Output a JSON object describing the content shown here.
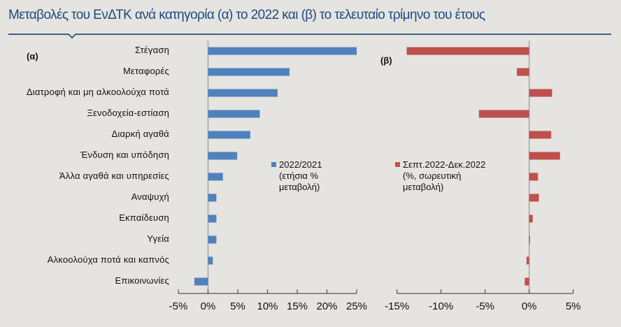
{
  "title": "Μεταβολές του ΕνΔΤΚ ανά κατηγορία (α) το 2022 και (β) το τελευταίο τρίμηνο του έτους",
  "colors": {
    "background": "#e5e4e0",
    "title": "#1f4a82",
    "rule": "#3e5f8a",
    "series_a": "#4f81bd",
    "series_b": "#c0504d",
    "axis": "#555555",
    "zero_line": "#a6a6a6"
  },
  "panels": {
    "a": {
      "label": "(α)"
    },
    "b": {
      "label": "(β)"
    }
  },
  "legend": {
    "a": {
      "line1": "2022/2021",
      "line2": "(ετήσια %",
      "line3": "μεταβολή)"
    },
    "b": {
      "line1": "Σεπτ.2022-Δεκ.2022",
      "line2": "(%, σωρευτική",
      "line3": "μεταβολή)"
    }
  },
  "chart_data": [
    {
      "type": "bar",
      "orientation": "horizontal",
      "title": "(α)",
      "categories": [
        "Στέγαση",
        "Μεταφορές",
        "Διατροφή και μη αλκοολούχα ποτά",
        "Ξενοδοχεία-εστίαση",
        "Διαρκή αγαθά",
        "Ένδυση και υπόδηση",
        "Άλλα αγαθά και υπηρεσίες",
        "Αναψυχή",
        "Εκπαίδευση",
        "Υγεία",
        "Αλκοολούχα ποτά και καπνός",
        "Επικοινωνίες"
      ],
      "series": [
        {
          "name": "2022/2021 (ετήσια % μεταβολή)",
          "values": [
            25.0,
            13.7,
            11.7,
            8.7,
            7.1,
            4.9,
            2.5,
            1.4,
            1.4,
            1.4,
            0.8,
            -2.3
          ]
        }
      ],
      "xlabel": "",
      "ylabel": "",
      "xlim": [
        -5,
        25
      ],
      "ticks": [
        "-5%",
        "0%",
        "5%",
        "10%",
        "15%",
        "20%",
        "25%"
      ],
      "tick_values": [
        -5,
        0,
        5,
        10,
        15,
        20,
        25
      ],
      "grid": false,
      "legend_position": "inside-center"
    },
    {
      "type": "bar",
      "orientation": "horizontal",
      "title": "(β)",
      "categories": [
        "Στέγαση",
        "Μεταφορές",
        "Διατροφή και μη αλκοολούχα ποτά",
        "Ξενοδοχεία-εστίαση",
        "Διαρκή αγαθά",
        "Ένδυση και υπόδηση",
        "Άλλα αγαθά και υπηρεσίες",
        "Αναψυχή",
        "Εκπαίδευση",
        "Υγεία",
        "Αλκοολούχα ποτά και καπνός",
        "Επικοινωνίες"
      ],
      "series": [
        {
          "name": "Σεπτ.2022-Δεκ.2022 (%, σωρευτική μεταβολή)",
          "values": [
            -13.9,
            -1.4,
            2.6,
            -5.7,
            2.5,
            3.5,
            1.0,
            1.1,
            0.4,
            0.1,
            -0.3,
            -0.5
          ]
        }
      ],
      "xlabel": "",
      "ylabel": "",
      "xlim": [
        -15,
        5
      ],
      "ticks": [
        "-15%",
        "-10%",
        "-5%",
        "0%",
        "5%"
      ],
      "tick_values": [
        -15,
        -10,
        -5,
        0,
        5
      ],
      "grid": false,
      "legend_position": "inside-center"
    }
  ]
}
